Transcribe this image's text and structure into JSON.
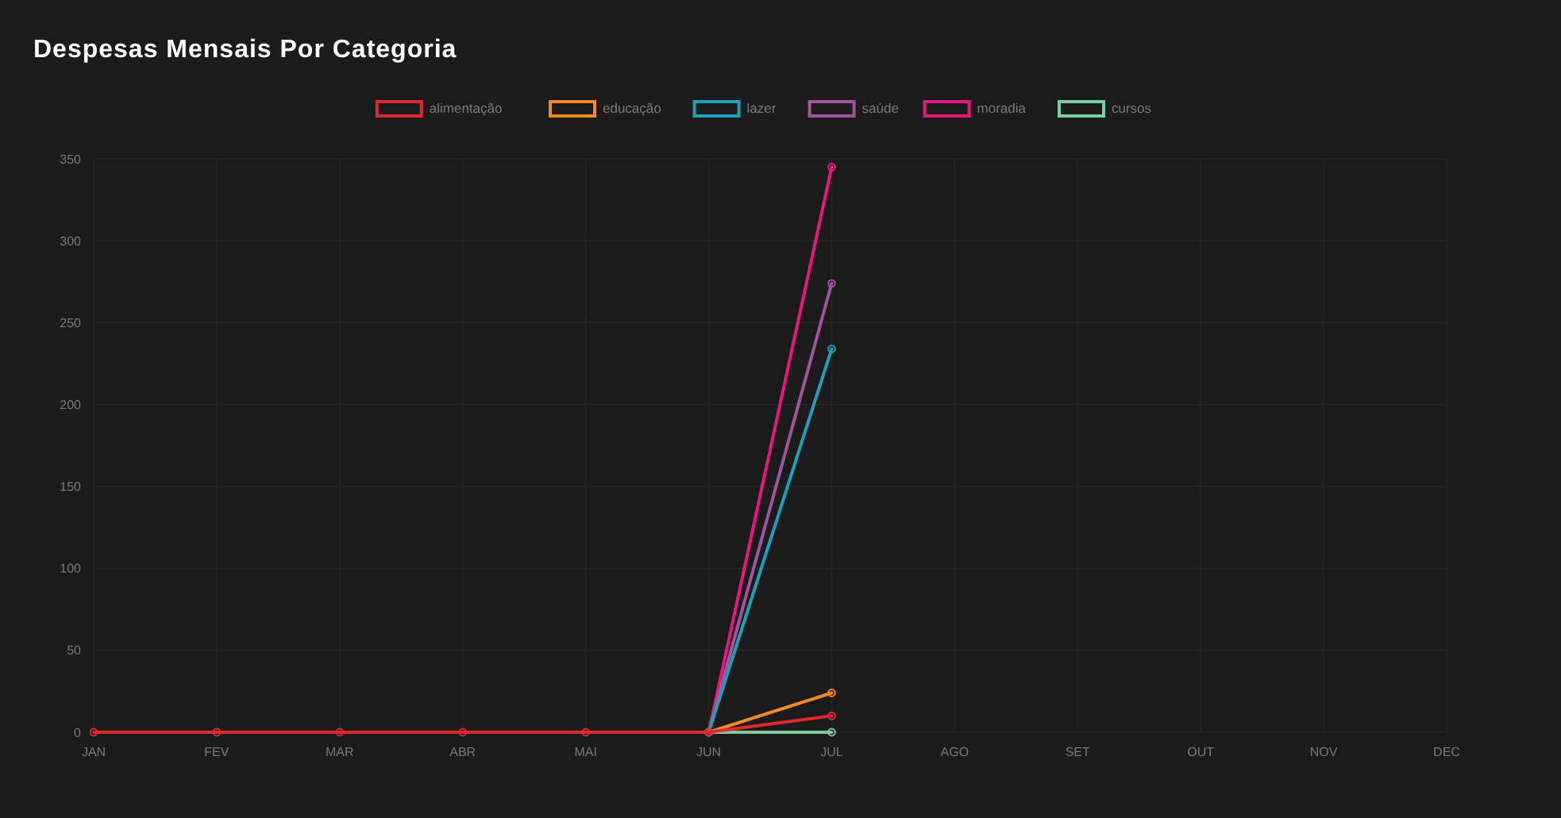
{
  "chart_data": {
    "type": "line",
    "title": "Despesas Mensais Por Categoria",
    "categories": [
      "JAN",
      "FEV",
      "MAR",
      "ABR",
      "MAI",
      "JUN",
      "JUL",
      "AGO",
      "SET",
      "OUT",
      "NOV",
      "DEC"
    ],
    "series": [
      {
        "name": "alimentação",
        "color": "#e0282e",
        "values": [
          0,
          0,
          0,
          0,
          0,
          0,
          10,
          null,
          null,
          null,
          null,
          null
        ]
      },
      {
        "name": "educação",
        "color": "#f08a24",
        "values": [
          null,
          null,
          null,
          null,
          null,
          0,
          24,
          null,
          null,
          null,
          null,
          null
        ]
      },
      {
        "name": "lazer",
        "color": "#1fa0b8",
        "values": [
          null,
          null,
          null,
          null,
          null,
          0,
          234,
          null,
          null,
          null,
          null,
          null
        ]
      },
      {
        "name": "saúde",
        "color": "#a0559f",
        "values": [
          null,
          null,
          null,
          null,
          null,
          0,
          274,
          null,
          null,
          null,
          null,
          null
        ]
      },
      {
        "name": "moradia",
        "color": "#e6177f",
        "values": [
          null,
          null,
          null,
          null,
          null,
          0,
          345,
          null,
          null,
          null,
          null,
          null
        ]
      },
      {
        "name": "cursos",
        "color": "#7dcca0",
        "values": [
          null,
          null,
          null,
          null,
          null,
          0,
          0,
          null,
          null,
          null,
          null,
          null
        ]
      }
    ],
    "ylim": [
      0,
      350
    ],
    "yticks": [
      0,
      50,
      100,
      150,
      200,
      250,
      300,
      350
    ],
    "grid": true,
    "legend": "top",
    "marker": "circle",
    "line_style": "solid"
  }
}
